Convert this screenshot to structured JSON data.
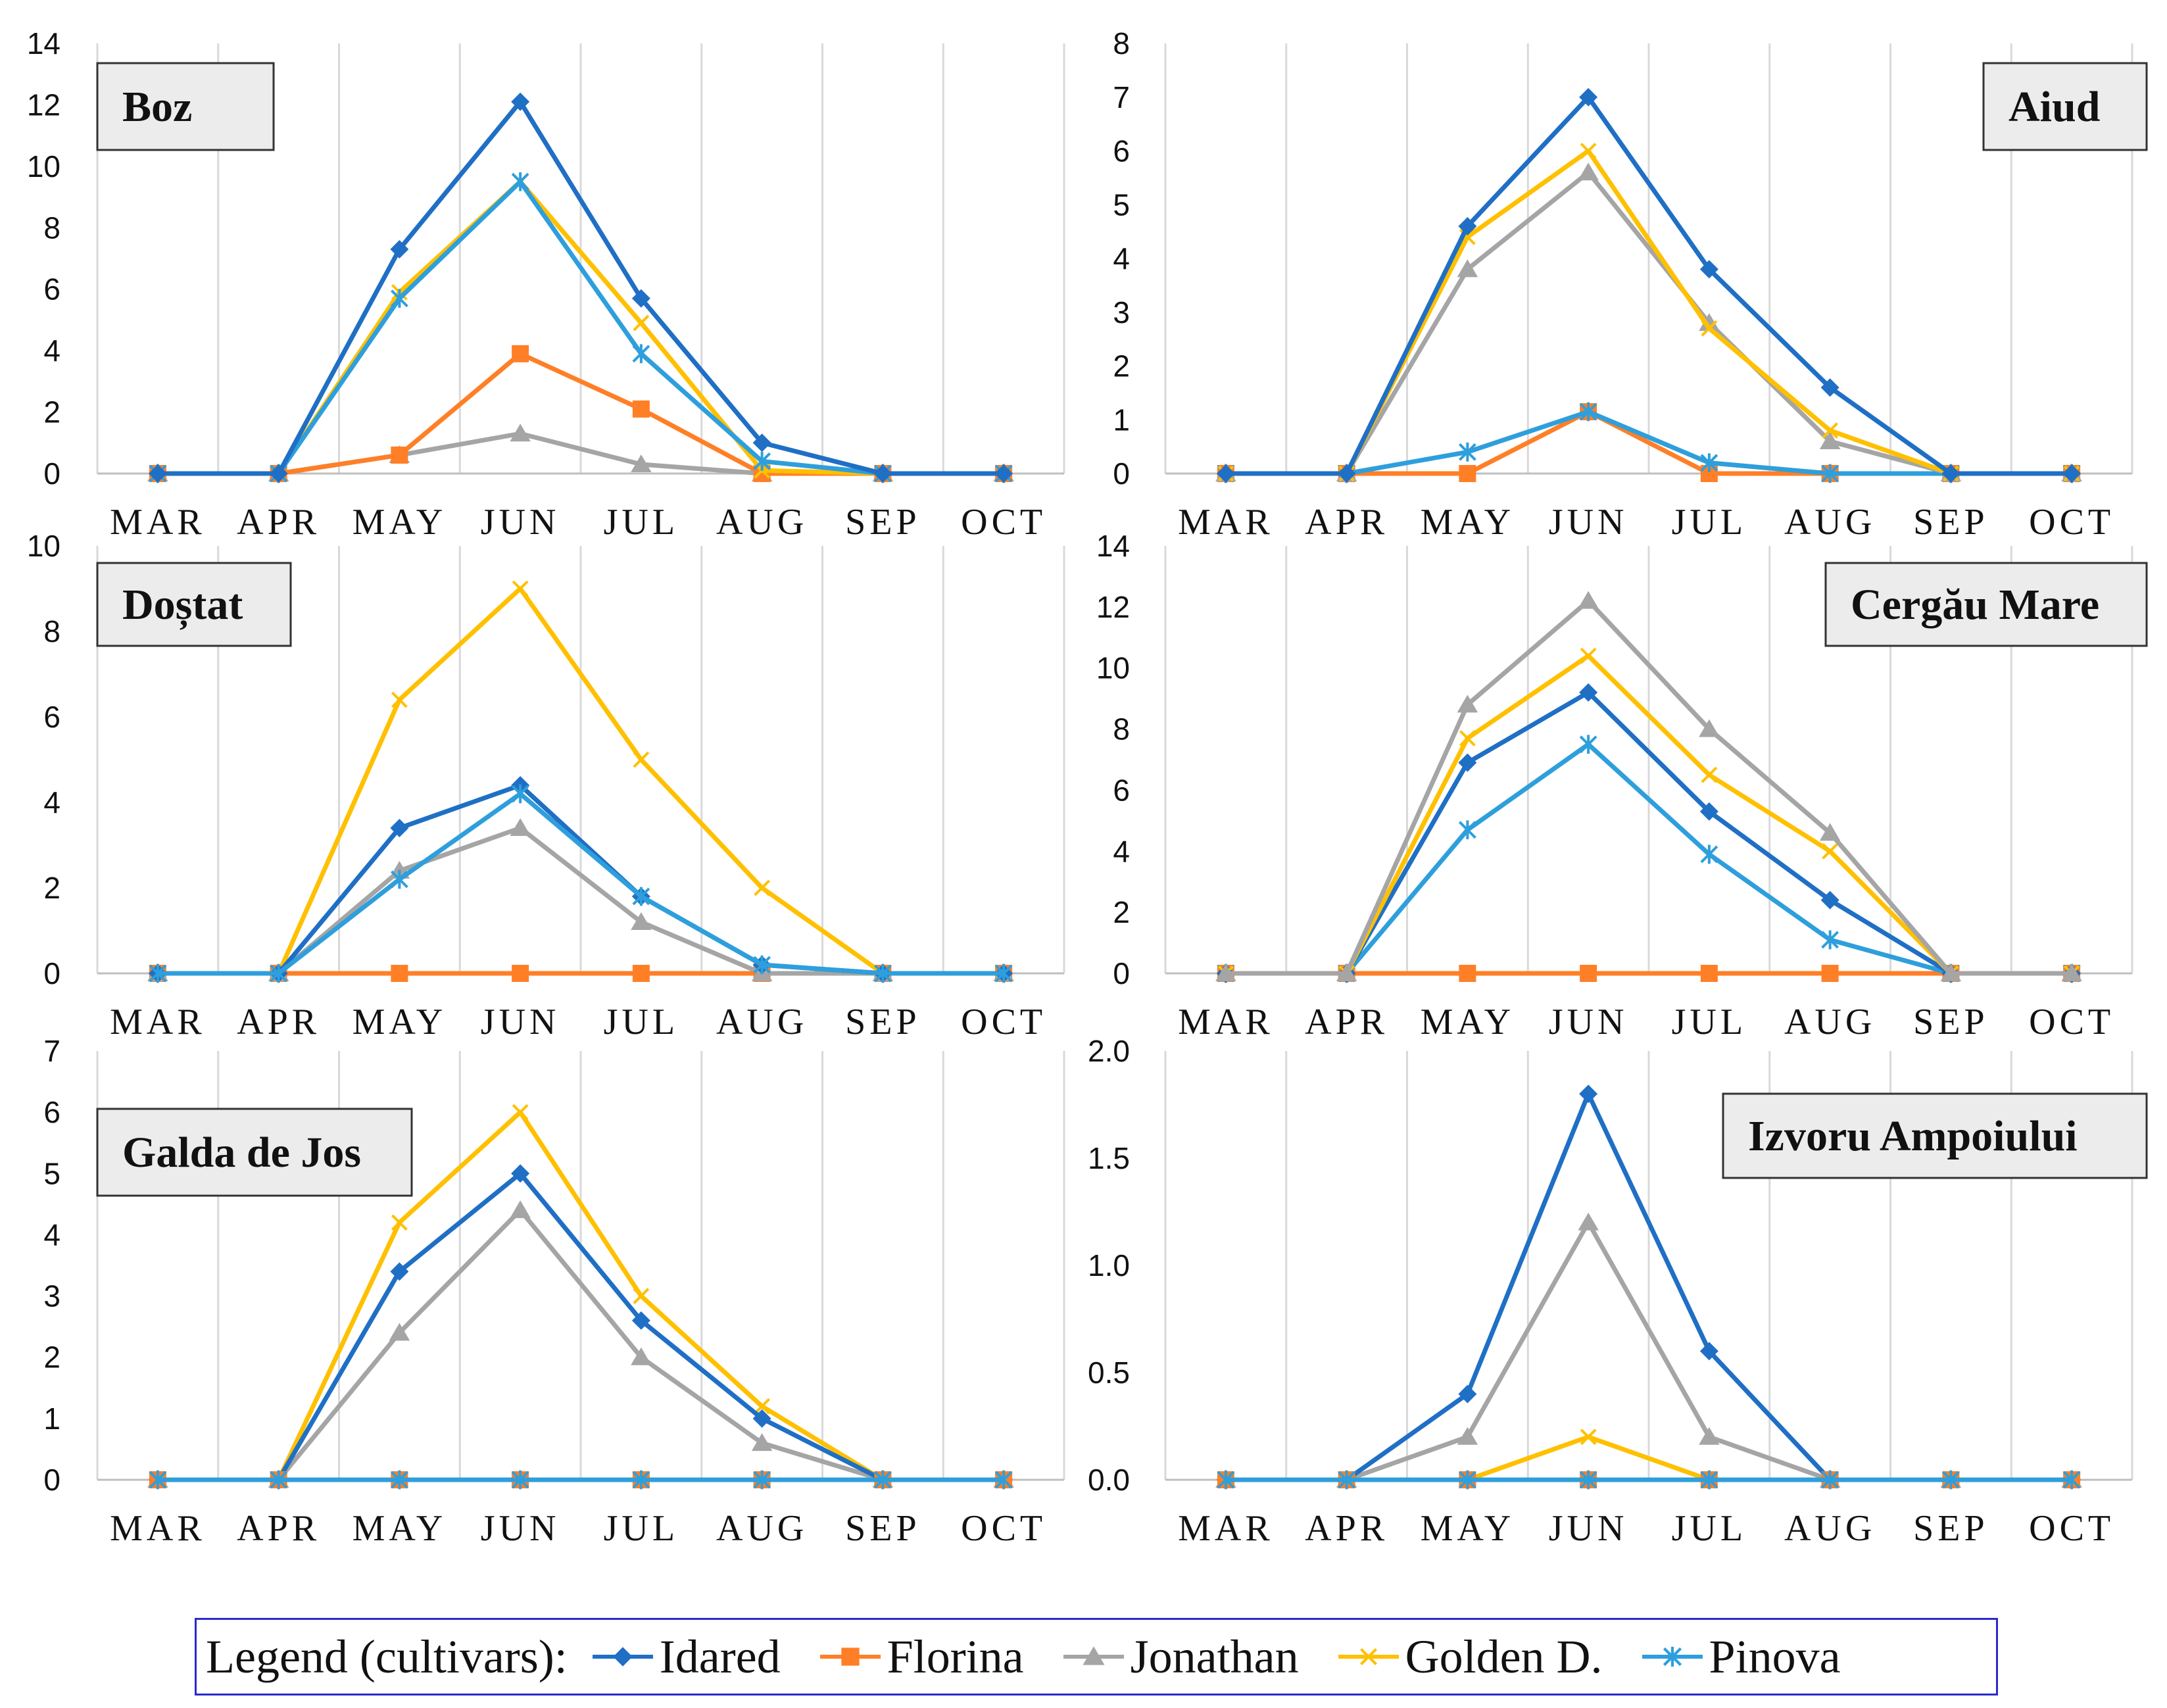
{
  "colors": {
    "Idared": "#1f6fc5",
    "Florina": "#ff7f27",
    "Jonathan": "#a5a5a5",
    "Golden D.": "#ffc000",
    "Pinova": "#2e9fdc",
    "grid": "#d9d9d9",
    "label_box": "#ececec"
  },
  "legend": {
    "title": "Legend (cultivars):",
    "items": [
      {
        "name": "Idared",
        "marker": "diamond"
      },
      {
        "name": "Florina",
        "marker": "square"
      },
      {
        "name": "Jonathan",
        "marker": "triangle"
      },
      {
        "name": "Golden D.",
        "marker": "x"
      },
      {
        "name": "Pinova",
        "marker": "asterisk"
      }
    ]
  },
  "chart_data": [
    {
      "type": "line",
      "title": "Boz",
      "label_position": "top-left",
      "categories": [
        "MAR",
        "APR",
        "MAY",
        "JUN",
        "JUL",
        "AUG",
        "SEP",
        "OCT"
      ],
      "ylim": [
        0,
        14
      ],
      "yticks": [
        "0",
        "2",
        "4",
        "6",
        "8",
        "10",
        "12",
        "14"
      ],
      "series": [
        {
          "name": "Jonathan",
          "values": [
            0,
            0,
            0.6,
            1.3,
            0.3,
            0,
            0,
            0
          ]
        },
        {
          "name": "Florina",
          "values": [
            0,
            0,
            0.6,
            3.9,
            2.1,
            0,
            0,
            0
          ]
        },
        {
          "name": "Golden D.",
          "values": [
            0,
            0,
            5.9,
            9.5,
            4.9,
            0.1,
            0,
            0
          ]
        },
        {
          "name": "Pinova",
          "values": [
            0,
            0,
            5.7,
            9.5,
            3.9,
            0.4,
            0,
            0
          ]
        },
        {
          "name": "Idared",
          "values": [
            0,
            0,
            7.3,
            12.1,
            5.7,
            1.0,
            0,
            0
          ]
        }
      ]
    },
    {
      "type": "line",
      "title": "Aiud",
      "label_position": "top-right",
      "categories": [
        "MAR",
        "APR",
        "MAY",
        "JUN",
        "JUL",
        "AUG",
        "SEP",
        "OCT"
      ],
      "ylim": [
        0,
        8
      ],
      "yticks": [
        "0",
        "1",
        "2",
        "3",
        "4",
        "5",
        "6",
        "7",
        "8"
      ],
      "series": [
        {
          "name": "Florina",
          "values": [
            0,
            0,
            0,
            1.15,
            0,
            0,
            0,
            0
          ]
        },
        {
          "name": "Pinova",
          "values": [
            0,
            0,
            0.4,
            1.15,
            0.2,
            0,
            0,
            0
          ]
        },
        {
          "name": "Jonathan",
          "values": [
            0,
            0,
            3.8,
            5.6,
            2.8,
            0.6,
            0,
            0
          ]
        },
        {
          "name": "Golden D.",
          "values": [
            0,
            0,
            4.4,
            6.0,
            2.7,
            0.8,
            0,
            0
          ]
        },
        {
          "name": "Idared",
          "values": [
            0,
            0,
            4.6,
            7.0,
            3.8,
            1.6,
            0,
            0
          ]
        }
      ]
    },
    {
      "type": "line",
      "title": "Doștat",
      "label_position": "top-left",
      "categories": [
        "MAR",
        "APR",
        "MAY",
        "JUN",
        "JUL",
        "AUG",
        "SEP",
        "OCT"
      ],
      "ylim": [
        0,
        10
      ],
      "yticks": [
        "0",
        "2",
        "4",
        "6",
        "8",
        "10"
      ],
      "series": [
        {
          "name": "Florina",
          "values": [
            0,
            0,
            0,
            0,
            0,
            0,
            0,
            0
          ]
        },
        {
          "name": "Jonathan",
          "values": [
            0,
            0,
            2.4,
            3.4,
            1.2,
            0,
            0,
            0
          ]
        },
        {
          "name": "Golden D.",
          "values": [
            0,
            0,
            6.4,
            9.0,
            5.0,
            2.0,
            0,
            0
          ]
        },
        {
          "name": "Idared",
          "values": [
            0,
            0,
            3.4,
            4.4,
            1.8,
            0.2,
            0,
            0
          ]
        },
        {
          "name": "Pinova",
          "values": [
            0,
            0,
            2.2,
            4.2,
            1.8,
            0.2,
            0,
            0
          ]
        }
      ]
    },
    {
      "type": "line",
      "title": "Cergău Mare",
      "label_position": "top-right",
      "categories": [
        "MAR",
        "APR",
        "MAY",
        "JUN",
        "JUL",
        "AUG",
        "SEP",
        "OCT"
      ],
      "ylim": [
        0,
        14
      ],
      "yticks": [
        "0",
        "2",
        "4",
        "6",
        "8",
        "10",
        "12",
        "14"
      ],
      "series": [
        {
          "name": "Florina",
          "values": [
            0,
            0,
            0,
            0,
            0,
            0,
            0,
            0
          ]
        },
        {
          "name": "Pinova",
          "values": [
            0,
            0,
            4.7,
            7.5,
            3.9,
            1.1,
            0,
            0
          ]
        },
        {
          "name": "Idared",
          "values": [
            0,
            0,
            6.9,
            9.2,
            5.3,
            2.4,
            0,
            0
          ]
        },
        {
          "name": "Golden D.",
          "values": [
            0,
            0,
            7.7,
            10.4,
            6.5,
            4.0,
            0,
            0
          ]
        },
        {
          "name": "Jonathan",
          "values": [
            0,
            0,
            8.8,
            12.2,
            8.0,
            4.6,
            0,
            0
          ]
        }
      ]
    },
    {
      "type": "line",
      "title": "Galda de Jos",
      "label_position": "top-left",
      "categories": [
        "MAR",
        "APR",
        "MAY",
        "JUN",
        "JUL",
        "AUG",
        "SEP",
        "OCT"
      ],
      "ylim": [
        0,
        7
      ],
      "yticks": [
        "0",
        "1",
        "2",
        "3",
        "4",
        "5",
        "6",
        "7"
      ],
      "series": [
        {
          "name": "Jonathan",
          "values": [
            0,
            0,
            2.4,
            4.4,
            2.0,
            0.6,
            0,
            0
          ]
        },
        {
          "name": "Golden D.",
          "values": [
            0,
            0,
            4.2,
            6.0,
            3.0,
            1.2,
            0,
            0
          ]
        },
        {
          "name": "Idared",
          "values": [
            0,
            0,
            3.4,
            5.0,
            2.6,
            1.0,
            0,
            0
          ]
        },
        {
          "name": "Florina",
          "values": [
            0,
            0,
            0,
            0,
            0,
            0,
            0,
            0
          ]
        },
        {
          "name": "Pinova",
          "values": [
            0,
            0,
            0,
            0,
            0,
            0,
            0,
            0
          ]
        }
      ]
    },
    {
      "type": "line",
      "title": "Izvoru Ampoiului",
      "label_position": "top-right",
      "categories": [
        "MAR",
        "APR",
        "MAY",
        "JUN",
        "JUL",
        "AUG",
        "SEP",
        "OCT"
      ],
      "ylim": [
        0,
        2
      ],
      "yticks": [
        "0.0",
        "0.5",
        "1.0",
        "1.5",
        "2.0"
      ],
      "series": [
        {
          "name": "Golden D.",
          "values": [
            0,
            0,
            0,
            0.2,
            0,
            0,
            0,
            0
          ]
        },
        {
          "name": "Jonathan",
          "values": [
            0,
            0,
            0.2,
            1.2,
            0.2,
            0,
            0,
            0
          ]
        },
        {
          "name": "Idared",
          "values": [
            0,
            0,
            0.4,
            1.8,
            0.6,
            0,
            0,
            0
          ]
        },
        {
          "name": "Florina",
          "values": [
            0,
            0,
            0,
            0,
            0,
            0,
            0,
            0
          ]
        },
        {
          "name": "Pinova",
          "values": [
            0,
            0,
            0,
            0,
            0,
            0,
            0,
            0
          ]
        }
      ]
    }
  ]
}
